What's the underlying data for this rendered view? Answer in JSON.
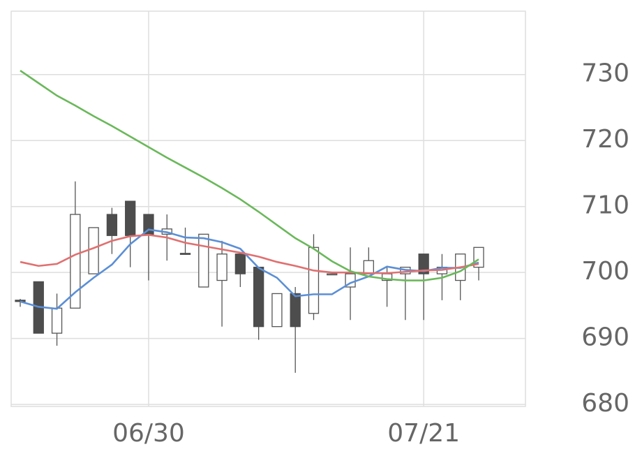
{
  "chart_data": {
    "type": "candlestick",
    "categories": [
      null,
      null,
      null,
      null,
      null,
      null,
      null,
      "06/30",
      null,
      null,
      null,
      null,
      null,
      null,
      null,
      null,
      null,
      null,
      null,
      null,
      null,
      null,
      "07/21",
      null,
      null,
      null
    ],
    "open": [
      695.8,
      698.6,
      690.8,
      694.6,
      699.8,
      708.8,
      710.8,
      708.8,
      705.8,
      702.9,
      697.8,
      698.8,
      702.8,
      700.8,
      691.8,
      696.8,
      693.8,
      699.8,
      697.8,
      699.8,
      698.8,
      699.8,
      702.8,
      699.8,
      698.8,
      700.8
    ],
    "high": [
      696.0,
      698.6,
      696.8,
      713.8,
      706.8,
      709.8,
      710.8,
      708.8,
      708.8,
      706.8,
      705.8,
      704.8,
      702.8,
      700.8,
      696.8,
      697.8,
      705.8,
      699.9,
      703.8,
      703.8,
      700.8,
      700.8,
      702.8,
      702.8,
      702.8,
      703.8
    ],
    "low": [
      694.8,
      690.8,
      688.9,
      694.6,
      699.8,
      702.8,
      700.8,
      698.8,
      701.8,
      702.7,
      697.8,
      691.8,
      697.8,
      689.8,
      691.8,
      684.8,
      692.8,
      699.7,
      692.8,
      699.8,
      694.8,
      692.8,
      692.8,
      695.8,
      695.8,
      698.8
    ],
    "close": [
      695.6,
      690.8,
      694.6,
      708.8,
      706.8,
      705.6,
      705.6,
      705.8,
      706.6,
      702.8,
      705.8,
      702.8,
      699.8,
      691.8,
      696.8,
      691.8,
      703.8,
      699.8,
      699.8,
      701.8,
      699.8,
      700.8,
      699.8,
      700.8,
      702.8,
      703.8
    ],
    "up_color": "#ffffff",
    "down_color": "#4d4d4d",
    "lines": [
      {
        "color": "#5b8fd6",
        "values": [
          695.6,
          694.8,
          694.5,
          697.0,
          699.2,
          701.2,
          704.3,
          706.5,
          706.1,
          705.3,
          705.2,
          704.6,
          703.6,
          700.7,
          699.2,
          696.4,
          696.7,
          696.7,
          698.4,
          699.4,
          700.9,
          700.4,
          700.2,
          700.7,
          700.7,
          701.5
        ]
      },
      {
        "color": "#e07070",
        "values": [
          701.6,
          701.0,
          701.3,
          702.7,
          703.7,
          704.8,
          705.5,
          705.7,
          705.3,
          704.5,
          704.0,
          703.5,
          703.0,
          702.4,
          701.6,
          701.0,
          700.3,
          700.0,
          700.0,
          699.9,
          699.9,
          700.1,
          700.3,
          700.4,
          700.8,
          701.3
        ]
      },
      {
        "color": "#6ab85a",
        "values": [
          730.6,
          728.7,
          726.8,
          725.3,
          723.7,
          722.2,
          720.6,
          719.0,
          717.4,
          715.9,
          714.4,
          712.8,
          711.1,
          709.2,
          707.2,
          705.2,
          703.6,
          701.7,
          700.2,
          699.4,
          699.0,
          698.8,
          698.8,
          699.2,
          700.2,
          702.0
        ]
      }
    ],
    "ylim": [
      679.7,
      739.6
    ],
    "yticks": [
      680,
      690,
      700,
      710,
      720,
      730
    ],
    "grid": true
  }
}
